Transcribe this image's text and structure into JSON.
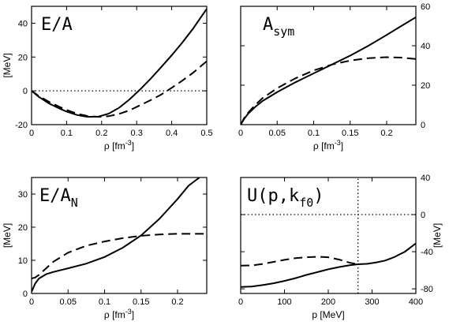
{
  "chart_data": [
    {
      "type": "line",
      "title": "E/A",
      "title_sub": "",
      "xlabel": "ρ  [fm",
      "xlabel_sup": "-3",
      "xlabel_tail": "]",
      "ylabel": "[MeV]",
      "xlim": [
        0,
        0.5
      ],
      "ylim": [
        -20,
        50
      ],
      "yaxis_side": "left",
      "xticks": [
        0,
        0.1,
        0.2,
        0.3,
        0.4,
        0.5
      ],
      "xtick_labels": [
        "0",
        "0.1",
        "0.2",
        "0.3",
        "0.4",
        "0.5"
      ],
      "yticks": [
        -20,
        0,
        20,
        40
      ],
      "ytick_labels": [
        "-20",
        "0",
        "20",
        "40"
      ],
      "series": [
        {
          "style": "solid",
          "x": [
            0,
            0.02,
            0.05,
            0.08,
            0.1,
            0.13,
            0.16,
            0.19,
            0.22,
            0.25,
            0.28,
            0.31,
            0.34,
            0.37,
            0.4,
            0.43,
            0.46,
            0.5
          ],
          "y": [
            0,
            -3.5,
            -7.5,
            -10.5,
            -12.3,
            -14.3,
            -15.4,
            -15.3,
            -13.5,
            -10,
            -5,
            0.8,
            7.2,
            14,
            21,
            28.5,
            36.5,
            48.5
          ]
        },
        {
          "style": "dashed",
          "x": [
            0,
            0.02,
            0.05,
            0.08,
            0.1,
            0.13,
            0.16,
            0.19,
            0.22,
            0.25,
            0.28,
            0.31,
            0.34,
            0.37,
            0.4,
            0.43,
            0.46,
            0.5
          ],
          "y": [
            0,
            -3,
            -6.5,
            -9.5,
            -11.3,
            -13.5,
            -14.9,
            -15.4,
            -15,
            -13.6,
            -11.5,
            -8.5,
            -5.5,
            -2.2,
            1.8,
            6,
            10.5,
            17.5
          ]
        },
        {
          "style": "dotted",
          "x": [
            0,
            0.5
          ],
          "y": [
            0,
            0
          ]
        }
      ]
    },
    {
      "type": "line",
      "title": "A",
      "title_sub": "sym",
      "xlabel": "ρ  [fm",
      "xlabel_sup": "-3",
      "xlabel_tail": "]",
      "ylabel": "",
      "xlim": [
        0,
        0.24
      ],
      "ylim": [
        0,
        60
      ],
      "yaxis_side": "right",
      "xticks": [
        0,
        0.05,
        0.1,
        0.15,
        0.2
      ],
      "xtick_labels": [
        "0",
        "0.05",
        "0.1",
        "0.15",
        "0.2"
      ],
      "yticks": [
        0,
        20,
        40,
        60
      ],
      "ytick_labels": [
        "0",
        "20",
        "40",
        "60"
      ],
      "series": [
        {
          "style": "solid",
          "x": [
            0,
            0.005,
            0.01,
            0.02,
            0.03,
            0.05,
            0.075,
            0.1,
            0.125,
            0.15,
            0.175,
            0.2,
            0.22,
            0.24
          ],
          "y": [
            0,
            3,
            5.5,
            9,
            12,
            16.5,
            21.5,
            26,
            30.5,
            35,
            40,
            45.5,
            50,
            54.5
          ]
        },
        {
          "style": "dashed",
          "x": [
            0,
            0.005,
            0.01,
            0.02,
            0.03,
            0.05,
            0.075,
            0.1,
            0.125,
            0.15,
            0.175,
            0.2,
            0.22,
            0.24
          ],
          "y": [
            0,
            3.5,
            6,
            10,
            13.5,
            18.5,
            23.5,
            27.5,
            30.5,
            32.5,
            33.7,
            34.2,
            34,
            33.3
          ]
        }
      ]
    },
    {
      "type": "line",
      "title": "E/A",
      "title_sub": "N",
      "xlabel": "ρ [fm",
      "xlabel_sup": "-3",
      "xlabel_tail": "]",
      "ylabel": "[MeV]",
      "xlim": [
        0,
        0.24
      ],
      "ylim": [
        0,
        35
      ],
      "yaxis_side": "left",
      "xticks": [
        0,
        0.05,
        0.1,
        0.15,
        0.2
      ],
      "xtick_labels": [
        "0",
        "0.05",
        "0.1",
        "0.15",
        "0.2"
      ],
      "yticks": [
        0,
        10,
        20,
        30
      ],
      "ytick_labels": [
        "0",
        "10",
        "20",
        "30"
      ],
      "series": [
        {
          "style": "solid",
          "x": [
            0,
            0.005,
            0.01,
            0.02,
            0.03,
            0.05,
            0.075,
            0.1,
            0.125,
            0.15,
            0.175,
            0.2,
            0.215,
            0.23
          ],
          "y": [
            0.5,
            3,
            4.5,
            5.8,
            6.5,
            7.6,
            9,
            11,
            13.8,
            17.5,
            22.5,
            28.5,
            32.5,
            35
          ]
        },
        {
          "style": "dashed",
          "x": [
            0,
            0.005,
            0.01,
            0.02,
            0.03,
            0.05,
            0.075,
            0.1,
            0.125,
            0.15,
            0.175,
            0.2,
            0.22,
            0.24
          ],
          "y": [
            4.5,
            4.8,
            5.6,
            7.6,
            9.6,
            12.3,
            14.4,
            15.7,
            16.7,
            17.4,
            17.8,
            18,
            18,
            18
          ]
        }
      ]
    },
    {
      "type": "line",
      "title": "U(p,k",
      "title_sub": "f0",
      "title_tail": ")",
      "xlabel": "p [MeV]",
      "xlabel_sup": "",
      "xlabel_tail": "",
      "ylabel": "[MeV]",
      "xlim": [
        0,
        400
      ],
      "ylim": [
        -85,
        40
      ],
      "yaxis_side": "right",
      "xticks": [
        0,
        100,
        200,
        300,
        400
      ],
      "xtick_labels": [
        "0",
        "100",
        "200",
        "300",
        "400"
      ],
      "yticks": [
        -80,
        -40,
        0,
        40
      ],
      "ytick_labels": [
        "-80",
        "-40",
        "0",
        "40"
      ],
      "series": [
        {
          "style": "solid",
          "x": [
            0,
            25,
            50,
            75,
            100,
            125,
            150,
            175,
            200,
            225,
            250,
            268,
            290,
            310,
            330,
            350,
            375,
            400
          ],
          "y": [
            -78,
            -77.5,
            -76,
            -74,
            -71.5,
            -68.5,
            -65,
            -62,
            -59,
            -56.5,
            -54.5,
            -53.5,
            -53,
            -51.5,
            -49.5,
            -46,
            -40,
            -31
          ]
        },
        {
          "style": "dashed",
          "x": [
            0,
            25,
            50,
            75,
            100,
            125,
            150,
            175,
            200,
            225,
            250,
            268
          ],
          "y": [
            -55,
            -54.8,
            -53.2,
            -51,
            -48.8,
            -47,
            -46,
            -45.5,
            -46,
            -48.5,
            -52,
            -53.5
          ]
        },
        {
          "style": "dotted",
          "x": [
            0,
            400
          ],
          "y": [
            0,
            0
          ]
        },
        {
          "style": "dotted",
          "x": [
            268,
            268
          ],
          "y": [
            -85,
            40
          ]
        }
      ]
    }
  ]
}
